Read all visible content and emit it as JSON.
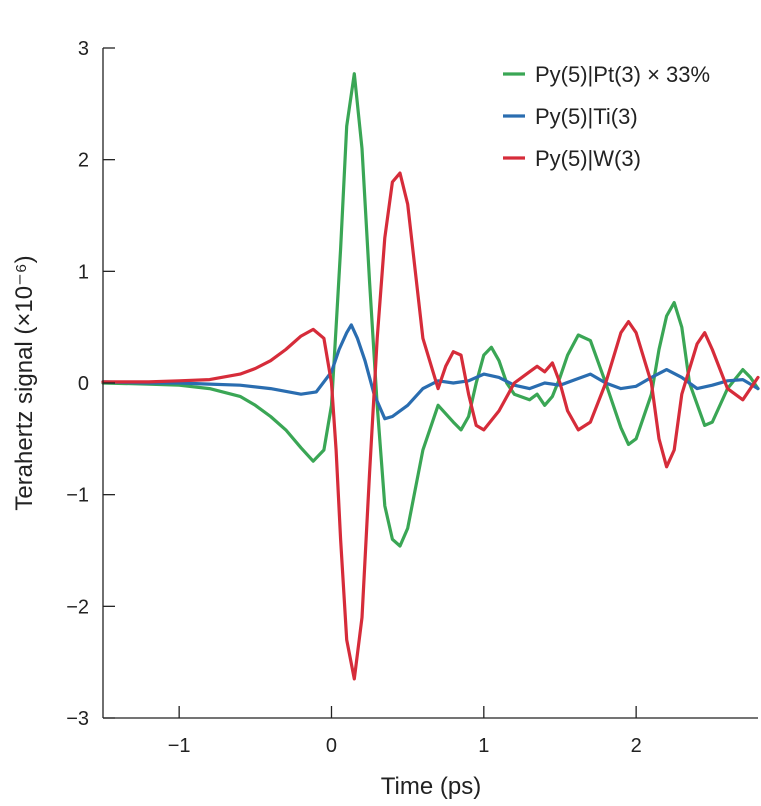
{
  "chart_data": {
    "type": "line",
    "xlabel": "Time (ps)",
    "ylabel": "Terahertz signal (×10⁻⁶)",
    "xlim": [
      -1.5,
      2.8
    ],
    "ylim": [
      -3,
      3
    ],
    "x_ticks": [
      -1,
      0,
      1,
      2
    ],
    "y_ticks": [
      -3,
      -2,
      -1,
      0,
      1,
      2,
      3
    ],
    "x_tick_labels": [
      "−1",
      "0",
      "1",
      "2"
    ],
    "y_tick_labels": [
      "−3",
      "−2",
      "−1",
      "0",
      "1",
      "2",
      "3"
    ],
    "grid": false,
    "legend_position": "top-right",
    "series": [
      {
        "name": "Py(5)|Pt(3) × 33%",
        "color": "#3aa655",
        "points": [
          [
            -1.5,
            0
          ],
          [
            -1.2,
            -0.01
          ],
          [
            -1.0,
            -0.02
          ],
          [
            -0.8,
            -0.05
          ],
          [
            -0.6,
            -0.12
          ],
          [
            -0.5,
            -0.2
          ],
          [
            -0.4,
            -0.3
          ],
          [
            -0.3,
            -0.42
          ],
          [
            -0.2,
            -0.58
          ],
          [
            -0.12,
            -0.7
          ],
          [
            -0.05,
            -0.6
          ],
          [
            0.0,
            -0.2
          ],
          [
            0.03,
            0.5
          ],
          [
            0.06,
            1.2
          ],
          [
            0.1,
            2.3
          ],
          [
            0.15,
            2.77
          ],
          [
            0.2,
            2.1
          ],
          [
            0.25,
            0.9
          ],
          [
            0.3,
            -0.2
          ],
          [
            0.35,
            -1.1
          ],
          [
            0.4,
            -1.4
          ],
          [
            0.45,
            -1.46
          ],
          [
            0.5,
            -1.3
          ],
          [
            0.55,
            -0.95
          ],
          [
            0.6,
            -0.6
          ],
          [
            0.7,
            -0.2
          ],
          [
            0.8,
            -0.35
          ],
          [
            0.85,
            -0.42
          ],
          [
            0.9,
            -0.3
          ],
          [
            0.95,
            0.0
          ],
          [
            1.0,
            0.25
          ],
          [
            1.05,
            0.32
          ],
          [
            1.1,
            0.2
          ],
          [
            1.15,
            0.0
          ],
          [
            1.2,
            -0.1
          ],
          [
            1.3,
            -0.15
          ],
          [
            1.35,
            -0.1
          ],
          [
            1.4,
            -0.2
          ],
          [
            1.45,
            -0.12
          ],
          [
            1.5,
            0.05
          ],
          [
            1.55,
            0.25
          ],
          [
            1.62,
            0.43
          ],
          [
            1.7,
            0.38
          ],
          [
            1.8,
            0.0
          ],
          [
            1.9,
            -0.4
          ],
          [
            1.95,
            -0.55
          ],
          [
            2.0,
            -0.5
          ],
          [
            2.1,
            -0.1
          ],
          [
            2.15,
            0.3
          ],
          [
            2.2,
            0.6
          ],
          [
            2.25,
            0.72
          ],
          [
            2.3,
            0.5
          ],
          [
            2.35,
            0.0
          ],
          [
            2.45,
            -0.38
          ],
          [
            2.5,
            -0.35
          ],
          [
            2.6,
            -0.05
          ],
          [
            2.7,
            0.12
          ],
          [
            2.75,
            0.05
          ],
          [
            2.8,
            -0.05
          ]
        ]
      },
      {
        "name": "Py(5)|Ti(3)",
        "color": "#2a6db0",
        "points": [
          [
            -1.5,
            0.01
          ],
          [
            -1.2,
            0.0
          ],
          [
            -1.0,
            0.0
          ],
          [
            -0.8,
            -0.01
          ],
          [
            -0.6,
            -0.02
          ],
          [
            -0.4,
            -0.05
          ],
          [
            -0.2,
            -0.1
          ],
          [
            -0.1,
            -0.08
          ],
          [
            0.0,
            0.1
          ],
          [
            0.05,
            0.3
          ],
          [
            0.1,
            0.45
          ],
          [
            0.13,
            0.52
          ],
          [
            0.17,
            0.4
          ],
          [
            0.22,
            0.2
          ],
          [
            0.28,
            -0.1
          ],
          [
            0.35,
            -0.32
          ],
          [
            0.4,
            -0.3
          ],
          [
            0.5,
            -0.2
          ],
          [
            0.6,
            -0.05
          ],
          [
            0.7,
            0.02
          ],
          [
            0.8,
            0.0
          ],
          [
            0.9,
            0.02
          ],
          [
            1.0,
            0.08
          ],
          [
            1.1,
            0.05
          ],
          [
            1.2,
            -0.02
          ],
          [
            1.3,
            -0.05
          ],
          [
            1.4,
            0.0
          ],
          [
            1.5,
            -0.02
          ],
          [
            1.6,
            0.03
          ],
          [
            1.7,
            0.08
          ],
          [
            1.8,
            0.0
          ],
          [
            1.9,
            -0.05
          ],
          [
            2.0,
            -0.03
          ],
          [
            2.1,
            0.05
          ],
          [
            2.2,
            0.12
          ],
          [
            2.3,
            0.05
          ],
          [
            2.4,
            -0.05
          ],
          [
            2.5,
            -0.02
          ],
          [
            2.6,
            0.02
          ],
          [
            2.7,
            0.03
          ],
          [
            2.8,
            -0.05
          ]
        ]
      },
      {
        "name": "Py(5)|W(3)",
        "color": "#d62c3a",
        "points": [
          [
            -1.5,
            0.01
          ],
          [
            -1.2,
            0.01
          ],
          [
            -1.0,
            0.02
          ],
          [
            -0.8,
            0.03
          ],
          [
            -0.6,
            0.08
          ],
          [
            -0.5,
            0.13
          ],
          [
            -0.4,
            0.2
          ],
          [
            -0.3,
            0.3
          ],
          [
            -0.2,
            0.42
          ],
          [
            -0.12,
            0.48
          ],
          [
            -0.05,
            0.4
          ],
          [
            0.0,
            0.0
          ],
          [
            0.03,
            -0.6
          ],
          [
            0.06,
            -1.4
          ],
          [
            0.1,
            -2.3
          ],
          [
            0.15,
            -2.65
          ],
          [
            0.2,
            -2.1
          ],
          [
            0.25,
            -0.8
          ],
          [
            0.3,
            0.4
          ],
          [
            0.35,
            1.3
          ],
          [
            0.4,
            1.8
          ],
          [
            0.45,
            1.88
          ],
          [
            0.5,
            1.6
          ],
          [
            0.55,
            1.0
          ],
          [
            0.6,
            0.4
          ],
          [
            0.7,
            -0.05
          ],
          [
            0.75,
            0.15
          ],
          [
            0.8,
            0.28
          ],
          [
            0.85,
            0.25
          ],
          [
            0.9,
            -0.1
          ],
          [
            0.95,
            -0.38
          ],
          [
            1.0,
            -0.42
          ],
          [
            1.1,
            -0.25
          ],
          [
            1.2,
            0.0
          ],
          [
            1.3,
            0.1
          ],
          [
            1.35,
            0.15
          ],
          [
            1.4,
            0.1
          ],
          [
            1.45,
            0.18
          ],
          [
            1.5,
            0.0
          ],
          [
            1.55,
            -0.25
          ],
          [
            1.62,
            -0.42
          ],
          [
            1.7,
            -0.35
          ],
          [
            1.8,
            0.0
          ],
          [
            1.9,
            0.45
          ],
          [
            1.95,
            0.55
          ],
          [
            2.0,
            0.45
          ],
          [
            2.1,
            0.0
          ],
          [
            2.15,
            -0.5
          ],
          [
            2.2,
            -0.75
          ],
          [
            2.25,
            -0.6
          ],
          [
            2.3,
            -0.1
          ],
          [
            2.4,
            0.35
          ],
          [
            2.45,
            0.45
          ],
          [
            2.5,
            0.3
          ],
          [
            2.6,
            -0.05
          ],
          [
            2.7,
            -0.15
          ],
          [
            2.75,
            -0.05
          ],
          [
            2.8,
            0.05
          ]
        ]
      }
    ]
  }
}
